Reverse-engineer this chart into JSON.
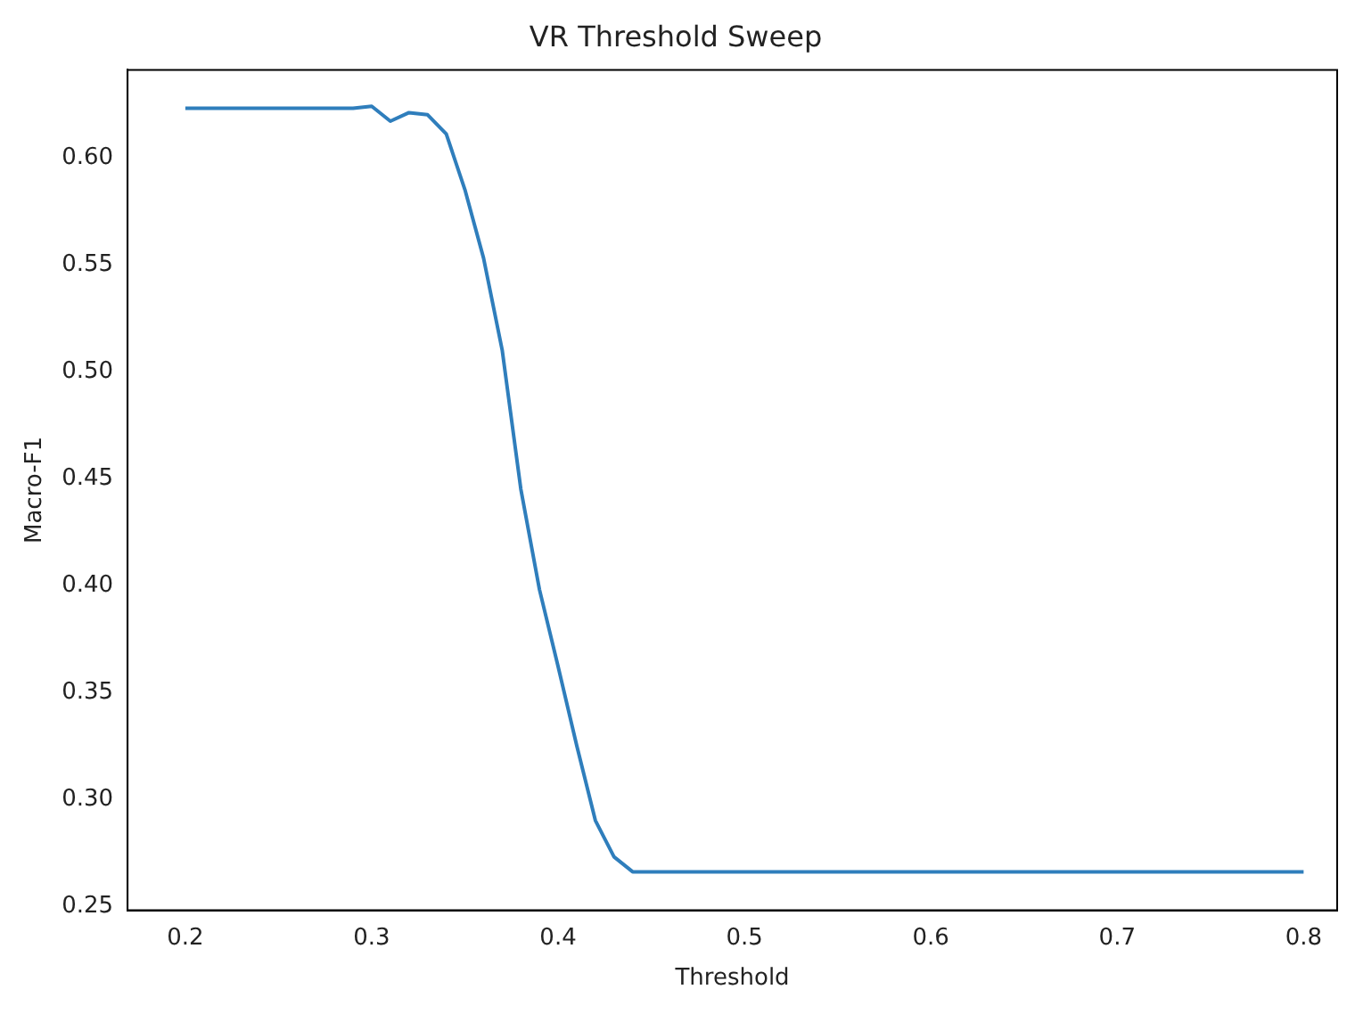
{
  "chart_data": {
    "type": "line",
    "title": "VR Threshold Sweep",
    "xlabel": "Threshold",
    "ylabel": "Macro-F1",
    "x": [
      0.2,
      0.21,
      0.22,
      0.23,
      0.24,
      0.25,
      0.26,
      0.27,
      0.28,
      0.29,
      0.3,
      0.31,
      0.32,
      0.33,
      0.34,
      0.35,
      0.36,
      0.37,
      0.38,
      0.39,
      0.4,
      0.41,
      0.42,
      0.43,
      0.44,
      0.45,
      0.46,
      0.47,
      0.48,
      0.49,
      0.5,
      0.51,
      0.52,
      0.53,
      0.54,
      0.55,
      0.56,
      0.57,
      0.58,
      0.59,
      0.6,
      0.61,
      0.62,
      0.63,
      0.64,
      0.65,
      0.66,
      0.67,
      0.68,
      0.69,
      0.7,
      0.71,
      0.72,
      0.73,
      0.74,
      0.75,
      0.76,
      0.77,
      0.78,
      0.79,
      0.8
    ],
    "series": [
      {
        "color": "#2f7ebc",
        "values": [
          0.623,
          0.623,
          0.623,
          0.623,
          0.623,
          0.623,
          0.623,
          0.623,
          0.623,
          0.623,
          0.624,
          0.617,
          0.621,
          0.62,
          0.611,
          0.585,
          0.553,
          0.51,
          0.445,
          0.398,
          0.362,
          0.325,
          0.29,
          0.273,
          0.266,
          0.266,
          0.266,
          0.266,
          0.266,
          0.266,
          0.266,
          0.266,
          0.266,
          0.266,
          0.266,
          0.266,
          0.266,
          0.266,
          0.266,
          0.266,
          0.266,
          0.266,
          0.266,
          0.266,
          0.266,
          0.266,
          0.266,
          0.266,
          0.266,
          0.266,
          0.266,
          0.266,
          0.266,
          0.266,
          0.266,
          0.266,
          0.266,
          0.266,
          0.266,
          0.266,
          0.266
        ]
      }
    ],
    "xlim": [
      0.169,
      0.818
    ],
    "ylim": [
      0.248,
      0.641
    ],
    "xticks": [
      0.2,
      0.3,
      0.4,
      0.5,
      0.6,
      0.7,
      0.8
    ],
    "yticks": [
      {
        "value": 0.25,
        "label": "0.25"
      },
      {
        "value": 0.3,
        "label": "0.30"
      },
      {
        "value": 0.35,
        "label": "0.35"
      },
      {
        "value": 0.4,
        "label": "0.40"
      },
      {
        "value": 0.45,
        "label": "0.45"
      },
      {
        "value": 0.5,
        "label": "0.50"
      },
      {
        "value": 0.55,
        "label": "0.55"
      },
      {
        "value": 0.6,
        "label": "0.60"
      }
    ],
    "grid": false,
    "legend": false,
    "marker": "none",
    "line_style": "solid"
  }
}
